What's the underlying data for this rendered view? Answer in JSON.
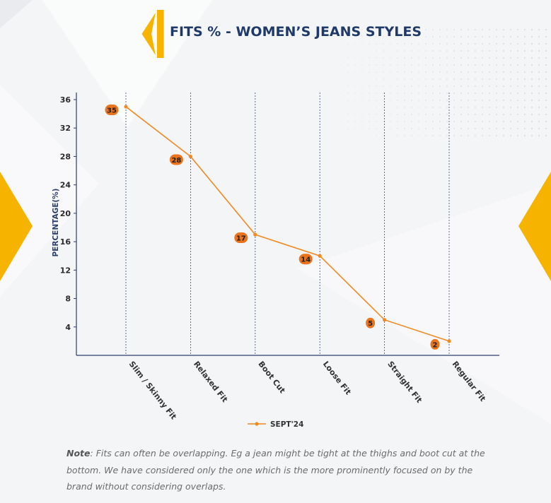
{
  "header": {
    "title": "FITS % - WOMEN’S JEANS STYLES"
  },
  "colors": {
    "accent": "#f6b400",
    "line": "#f08a24",
    "title": "#1f3a68",
    "axis": "#2c3e6b"
  },
  "note": {
    "label": "Note",
    "text": ": Fits can often be overlapping. Eg a jean might be tight at the thighs and boot cut at the bottom. We have considered only the one which is the more prominently focused on by the brand without considering overlaps."
  },
  "chart_data": {
    "type": "line",
    "categories": [
      "Slim / Skinny Fit",
      "Relaxed Fit",
      "Boot Cut",
      "Loose Fit",
      "Straight Fit",
      "Regular Fit"
    ],
    "series": [
      {
        "name": "SEPT'24",
        "values": [
          35,
          28,
          17,
          14,
          5,
          2
        ]
      }
    ],
    "ylabel": "PERCENTAGE(%)",
    "ylim": [
      0,
      36
    ],
    "yticks": [
      4,
      8,
      12,
      16,
      20,
      24,
      28,
      32,
      36
    ],
    "legend": "bottom-center",
    "grid": "vertical dashed lines at categories"
  }
}
